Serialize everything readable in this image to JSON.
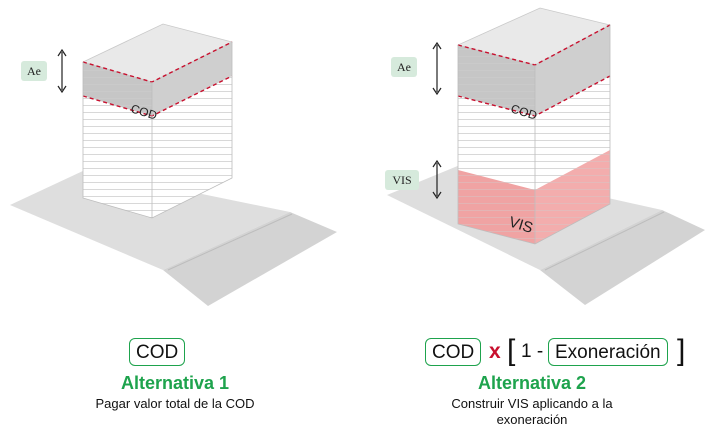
{
  "left": {
    "ae_label": "Ae",
    "cod_label": "COD",
    "formula": {
      "cod": "COD"
    },
    "title": "Alternativa 1",
    "description": "Pagar valor total de la COD"
  },
  "right": {
    "ae_label": "Ae",
    "cod_label": "COD",
    "vis_tag": "VIS",
    "vis_label": "VIS",
    "formula": {
      "cod": "COD",
      "times": "x",
      "open_bracket": "[",
      "one_minus": "1 -",
      "exoneracion": "Exoneración",
      "close_bracket": "]"
    },
    "title": "Alternativa 2",
    "description_line1": "Construir VIS aplicando a la",
    "description_line2": "exoneración"
  },
  "colors": {
    "accent_green": "#1ea34d",
    "tag_fill": "#d6eadc",
    "crown_gray": "#c6c6c6",
    "vis_pink": "#f0a3a3",
    "dashed_red": "#c8102e",
    "ground": "#dedede"
  }
}
